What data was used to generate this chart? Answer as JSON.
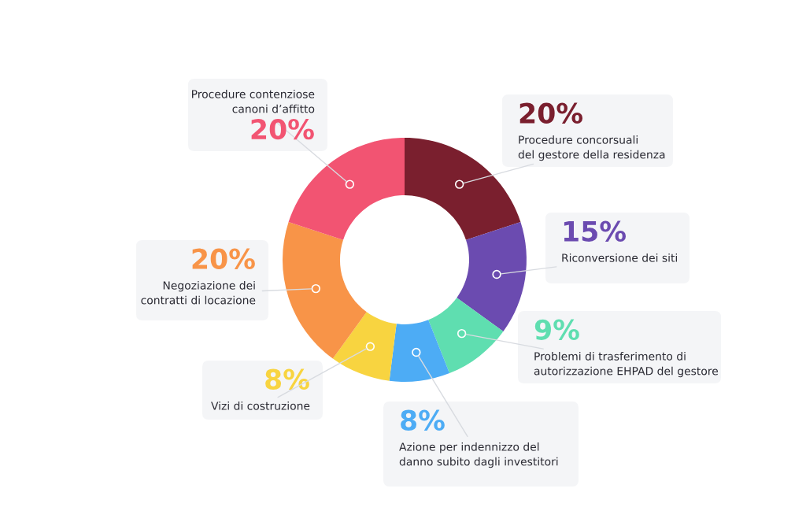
{
  "chart_data": {
    "type": "donut",
    "categories": [
      "Procedure concorsuali\ndel gestore della residenza",
      "Riconversione dei siti",
      "Problemi di trasferimento di\nautorizzazione EHPAD del gestore",
      "Azione per indennizzo del\ndanno subito dagli investitori",
      "Vizi di costruzione",
      "Negoziazione dei\ncontratti di locazione",
      "Procedure contenziose\ncanoni d’affitto"
    ],
    "values": [
      20,
      15,
      9,
      8,
      8,
      20,
      20
    ],
    "colors": [
      "#7a1f2e",
      "#6b4bb0",
      "#5fdeb0",
      "#4dacf5",
      "#f8d440",
      "#f89448",
      "#f25472"
    ],
    "value_labels": [
      "20%",
      "15%",
      "9%",
      "8%",
      "8%",
      "20%",
      "20%"
    ]
  }
}
